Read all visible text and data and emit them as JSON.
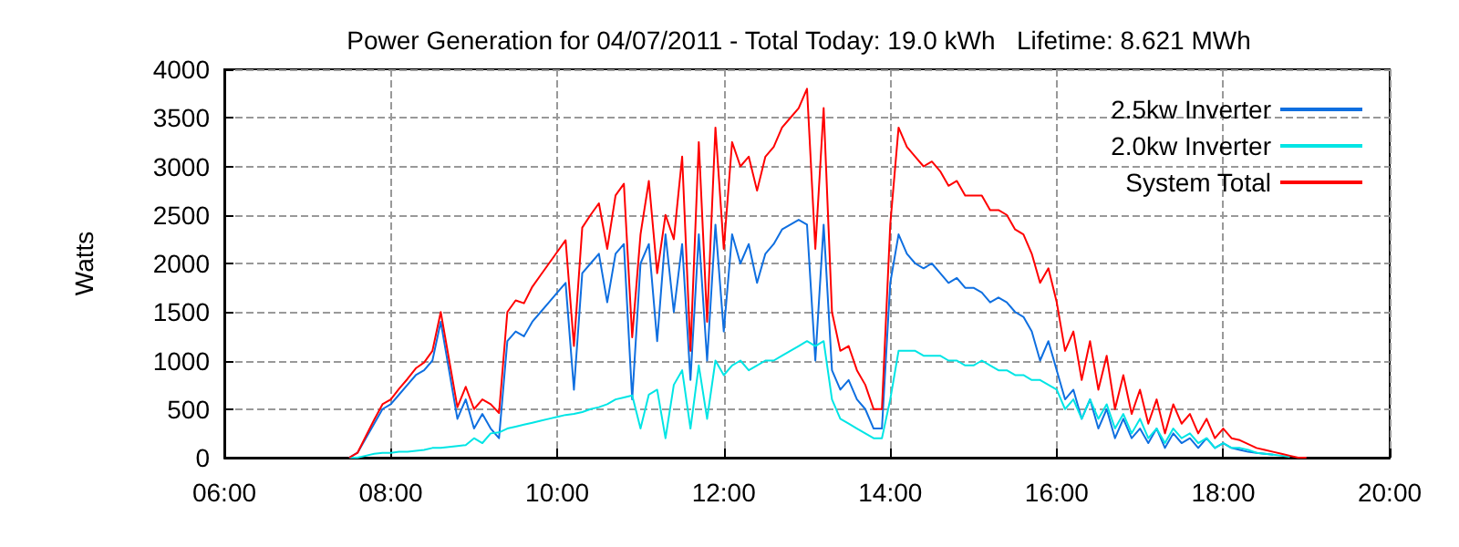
{
  "chart_data": {
    "type": "line",
    "title": "Power Generation for 04/07/2011 - Total Today: 19.0 kWh   Lifetime: 8.621 MWh",
    "ylabel": "Watts",
    "x": [
      7.5,
      7.6,
      7.7,
      7.8,
      7.9,
      8.0,
      8.1,
      8.2,
      8.3,
      8.4,
      8.5,
      8.6,
      8.7,
      8.8,
      8.9,
      9.0,
      9.1,
      9.2,
      9.3,
      9.4,
      9.5,
      9.6,
      9.7,
      9.8,
      9.9,
      10.0,
      10.1,
      10.2,
      10.3,
      10.4,
      10.5,
      10.6,
      10.7,
      10.8,
      10.9,
      11.0,
      11.1,
      11.2,
      11.3,
      11.4,
      11.5,
      11.6,
      11.7,
      11.8,
      11.9,
      12.0,
      12.1,
      12.2,
      12.3,
      12.4,
      12.5,
      12.6,
      12.7,
      12.8,
      12.9,
      13.0,
      13.1,
      13.2,
      13.3,
      13.4,
      13.5,
      13.6,
      13.7,
      13.8,
      13.9,
      14.0,
      14.1,
      14.2,
      14.3,
      14.4,
      14.5,
      14.6,
      14.7,
      14.8,
      14.9,
      15.0,
      15.1,
      15.2,
      15.3,
      15.4,
      15.5,
      15.6,
      15.7,
      15.8,
      15.9,
      16.0,
      16.1,
      16.2,
      16.3,
      16.4,
      16.5,
      16.6,
      16.7,
      16.8,
      16.9,
      17.0,
      17.1,
      17.2,
      17.3,
      17.4,
      17.5,
      17.6,
      17.7,
      17.8,
      17.9,
      18.0,
      18.1,
      18.2,
      18.3,
      18.4,
      18.5,
      18.6,
      18.7,
      18.8,
      18.9,
      19.0
    ],
    "series": [
      {
        "name": "2.5kw Inverter",
        "color": "#0f6fe0",
        "values": [
          0,
          50,
          200,
          350,
          500,
          550,
          650,
          750,
          850,
          900,
          1000,
          1400,
          900,
          400,
          600,
          300,
          450,
          300,
          200,
          1200,
          1300,
          1250,
          1400,
          1500,
          1600,
          1700,
          1800,
          700,
          1900,
          2000,
          2100,
          1600,
          2100,
          2200,
          600,
          2000,
          2200,
          1200,
          2300,
          1500,
          2200,
          800,
          2300,
          1000,
          2400,
          1300,
          2300,
          2000,
          2200,
          1800,
          2100,
          2200,
          2350,
          2400,
          2450,
          2400,
          1000,
          2400,
          900,
          700,
          800,
          600,
          500,
          300,
          300,
          1800,
          2300,
          2100,
          2000,
          1950,
          2000,
          1900,
          1800,
          1850,
          1750,
          1750,
          1700,
          1600,
          1650,
          1600,
          1500,
          1450,
          1300,
          1000,
          1200,
          900,
          600,
          700,
          400,
          600,
          300,
          500,
          200,
          400,
          200,
          300,
          150,
          300,
          100,
          250,
          150,
          200,
          100,
          200,
          100,
          150,
          100,
          80,
          60,
          50,
          40,
          30,
          null,
          null,
          null,
          null
        ]
      },
      {
        "name": "2.0kw Inverter",
        "color": "#00e5e5",
        "values": [
          0,
          0,
          20,
          40,
          50,
          50,
          60,
          60,
          70,
          80,
          100,
          100,
          110,
          120,
          130,
          200,
          150,
          250,
          260,
          300,
          320,
          340,
          360,
          380,
          400,
          420,
          440,
          450,
          470,
          500,
          520,
          550,
          600,
          620,
          640,
          300,
          650,
          700,
          200,
          750,
          900,
          300,
          950,
          400,
          1000,
          850,
          950,
          1000,
          900,
          950,
          1000,
          1000,
          1050,
          1100,
          1150,
          1200,
          1150,
          1200,
          600,
          400,
          350,
          300,
          250,
          200,
          200,
          600,
          1100,
          1100,
          1100,
          1050,
          1050,
          1050,
          1000,
          1000,
          950,
          950,
          1000,
          950,
          900,
          900,
          850,
          850,
          800,
          800,
          750,
          700,
          500,
          600,
          400,
          600,
          400,
          550,
          300,
          450,
          250,
          400,
          200,
          300,
          150,
          300,
          200,
          250,
          150,
          200,
          100,
          150,
          100,
          100,
          80,
          50,
          40,
          30,
          20,
          10,
          null,
          null
        ]
      },
      {
        "name": "System Total",
        "color": "#ff0000",
        "values": [
          0,
          50,
          220,
          390,
          550,
          600,
          710,
          810,
          920,
          980,
          1100,
          1500,
          1010,
          520,
          730,
          500,
          600,
          550,
          460,
          1500,
          1620,
          1590,
          1760,
          1880,
          2000,
          2120,
          2240,
          1150,
          2370,
          2500,
          2620,
          2150,
          2700,
          2820,
          1240,
          2300,
          2850,
          1900,
          2500,
          2250,
          3100,
          1100,
          3250,
          1400,
          3400,
          2150,
          3250,
          3000,
          3100,
          2750,
          3100,
          3200,
          3400,
          3500,
          3600,
          3800,
          2150,
          3600,
          1500,
          1100,
          1150,
          900,
          750,
          500,
          500,
          2400,
          3400,
          3200,
          3100,
          3000,
          3050,
          2950,
          2800,
          2850,
          2700,
          2700,
          2700,
          2550,
          2550,
          2500,
          2350,
          2300,
          2100,
          1800,
          1950,
          1600,
          1100,
          1300,
          800,
          1200,
          700,
          1050,
          500,
          850,
          450,
          700,
          350,
          600,
          250,
          550,
          350,
          450,
          250,
          400,
          200,
          300,
          200,
          180,
          140,
          100,
          80,
          60,
          40,
          20,
          0,
          0
        ]
      }
    ],
    "xlim": [
      6,
      20
    ],
    "xticks": [
      {
        "value": 6,
        "label": "06:00"
      },
      {
        "value": 8,
        "label": "08:00"
      },
      {
        "value": 10,
        "label": "10:00"
      },
      {
        "value": 12,
        "label": "12:00"
      },
      {
        "value": 14,
        "label": "14:00"
      },
      {
        "value": 16,
        "label": "16:00"
      },
      {
        "value": 18,
        "label": "18:00"
      },
      {
        "value": 20,
        "label": "20:00"
      }
    ],
    "ylim": [
      0,
      4000
    ],
    "yticks": [
      0,
      500,
      1000,
      1500,
      2000,
      2500,
      3000,
      3500,
      4000
    ],
    "grid": true,
    "legend": "top right",
    "marker": "none",
    "line_style": "solid"
  }
}
